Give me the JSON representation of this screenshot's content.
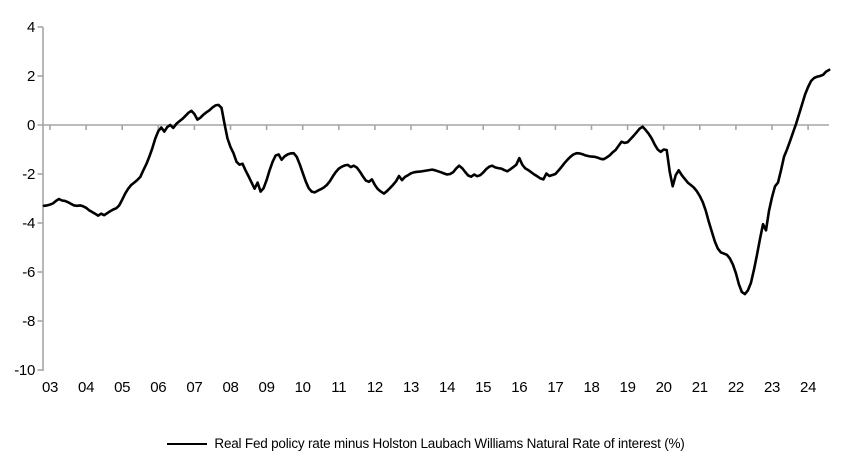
{
  "chart_data": {
    "type": "line",
    "title": "",
    "xlabel": "",
    "ylabel": "",
    "ylim": [
      -10,
      4
    ],
    "xlim_years": [
      2003,
      2024.67
    ],
    "grid": false,
    "legend_position": "bottom",
    "axis_color": "#a6a6a6",
    "y_ticks": [
      4,
      2,
      0,
      -2,
      -4,
      -6,
      -8,
      -10
    ],
    "x_ticks": [
      "03",
      "04",
      "05",
      "06",
      "07",
      "08",
      "09",
      "10",
      "11",
      "12",
      "13",
      "14",
      "15",
      "16",
      "17",
      "18",
      "19",
      "20",
      "21",
      "22",
      "23",
      "24"
    ],
    "x_axis_note": "x axis drawn at value 0; tick marks mark each January",
    "series": [
      {
        "name": "Real Fed policy rate minus Holston Laubach Williams Natural Rate of interest (%)",
        "color": "#000000",
        "frequency": "monthly",
        "years": [
          {
            "year": 2002,
            "start_month": 11,
            "values": [
              -3.3,
              -3.28
            ]
          },
          {
            "year": 2003,
            "values": [
              -3.25,
              -3.2,
              -3.1,
              -3.02,
              -3.08,
              -3.1,
              -3.15,
              -3.22,
              -3.28,
              -3.3,
              -3.28,
              -3.32
            ]
          },
          {
            "year": 2004,
            "values": [
              -3.38,
              -3.48,
              -3.55,
              -3.62,
              -3.7,
              -3.62,
              -3.68,
              -3.6,
              -3.52,
              -3.45,
              -3.4,
              -3.28
            ]
          },
          {
            "year": 2005,
            "values": [
              -3.05,
              -2.8,
              -2.6,
              -2.45,
              -2.35,
              -2.25,
              -2.12,
              -1.85,
              -1.6,
              -1.3,
              -0.95,
              -0.55
            ]
          },
          {
            "year": 2006,
            "values": [
              -0.25,
              -0.1,
              -0.27,
              -0.08,
              0.0,
              -0.12,
              0.05,
              0.15,
              0.25,
              0.37,
              0.5,
              0.58
            ]
          },
          {
            "year": 2007,
            "values": [
              0.45,
              0.22,
              0.3,
              0.42,
              0.52,
              0.6,
              0.72,
              0.8,
              0.82,
              0.7,
              0.05,
              -0.55
            ]
          },
          {
            "year": 2008,
            "values": [
              -0.9,
              -1.15,
              -1.5,
              -1.62,
              -1.58,
              -1.85,
              -2.1,
              -2.35,
              -2.6,
              -2.35,
              -2.72,
              -2.58
            ]
          },
          {
            "year": 2009,
            "values": [
              -2.25,
              -1.85,
              -1.5,
              -1.25,
              -1.2,
              -1.42,
              -1.28,
              -1.2,
              -1.16,
              -1.15,
              -1.3,
              -1.6
            ]
          },
          {
            "year": 2010,
            "values": [
              -1.95,
              -2.3,
              -2.58,
              -2.72,
              -2.75,
              -2.68,
              -2.62,
              -2.55,
              -2.45,
              -2.3,
              -2.1,
              -1.92
            ]
          },
          {
            "year": 2011,
            "values": [
              -1.78,
              -1.7,
              -1.65,
              -1.63,
              -1.72,
              -1.66,
              -1.74,
              -1.9,
              -2.1,
              -2.27,
              -2.32,
              -2.22
            ]
          },
          {
            "year": 2012,
            "values": [
              -2.45,
              -2.62,
              -2.72,
              -2.8,
              -2.7,
              -2.58,
              -2.45,
              -2.3,
              -2.08,
              -2.25,
              -2.12,
              -2.05
            ]
          },
          {
            "year": 2013,
            "values": [
              -1.97,
              -1.93,
              -1.91,
              -1.9,
              -1.88,
              -1.86,
              -1.84,
              -1.82,
              -1.85,
              -1.89,
              -1.93,
              -1.98
            ]
          },
          {
            "year": 2014,
            "values": [
              -2.02,
              -2.0,
              -1.93,
              -1.78,
              -1.66,
              -1.76,
              -1.92,
              -2.06,
              -2.11,
              -2.02,
              -2.09,
              -2.05
            ]
          },
          {
            "year": 2015,
            "values": [
              -1.94,
              -1.8,
              -1.7,
              -1.66,
              -1.73,
              -1.76,
              -1.78,
              -1.84,
              -1.89,
              -1.81,
              -1.72,
              -1.62
            ]
          },
          {
            "year": 2016,
            "values": [
              -1.35,
              -1.62,
              -1.77,
              -1.84,
              -1.93,
              -2.02,
              -2.1,
              -2.18,
              -2.22,
              -1.98,
              -2.08,
              -2.04
            ]
          },
          {
            "year": 2017,
            "values": [
              -2.0,
              -1.86,
              -1.72,
              -1.56,
              -1.42,
              -1.3,
              -1.2,
              -1.15,
              -1.16,
              -1.19,
              -1.24,
              -1.27
            ]
          },
          {
            "year": 2018,
            "values": [
              -1.29,
              -1.3,
              -1.33,
              -1.38,
              -1.4,
              -1.33,
              -1.24,
              -1.12,
              -1.02,
              -0.85,
              -0.68,
              -0.73
            ]
          },
          {
            "year": 2019,
            "values": [
              -0.7,
              -0.57,
              -0.44,
              -0.3,
              -0.15,
              -0.07,
              -0.2,
              -0.36,
              -0.55,
              -0.8,
              -1.0,
              -1.1
            ]
          },
          {
            "year": 2020,
            "values": [
              -1.0,
              -1.02,
              -1.9,
              -2.5,
              -2.05,
              -1.85,
              -2.05,
              -2.2,
              -2.35,
              -2.45,
              -2.55,
              -2.7
            ]
          },
          {
            "year": 2021,
            "values": [
              -2.9,
              -3.15,
              -3.5,
              -3.95,
              -4.35,
              -4.75,
              -5.05,
              -5.2,
              -5.25,
              -5.3,
              -5.45,
              -5.7
            ]
          },
          {
            "year": 2022,
            "values": [
              -6.05,
              -6.5,
              -6.82,
              -6.9,
              -6.75,
              -6.45,
              -5.9,
              -5.3,
              -4.65,
              -4.05,
              -4.3,
              -3.5
            ]
          },
          {
            "year": 2023,
            "values": [
              -2.95,
              -2.5,
              -2.35,
              -1.85,
              -1.3,
              -1.0,
              -0.65,
              -0.3,
              0.05,
              0.45,
              0.85,
              1.25
            ]
          },
          {
            "year": 2024,
            "values": [
              1.55,
              1.8,
              1.92,
              1.97,
              2.0,
              2.05,
              2.18,
              2.25
            ]
          }
        ]
      }
    ]
  }
}
